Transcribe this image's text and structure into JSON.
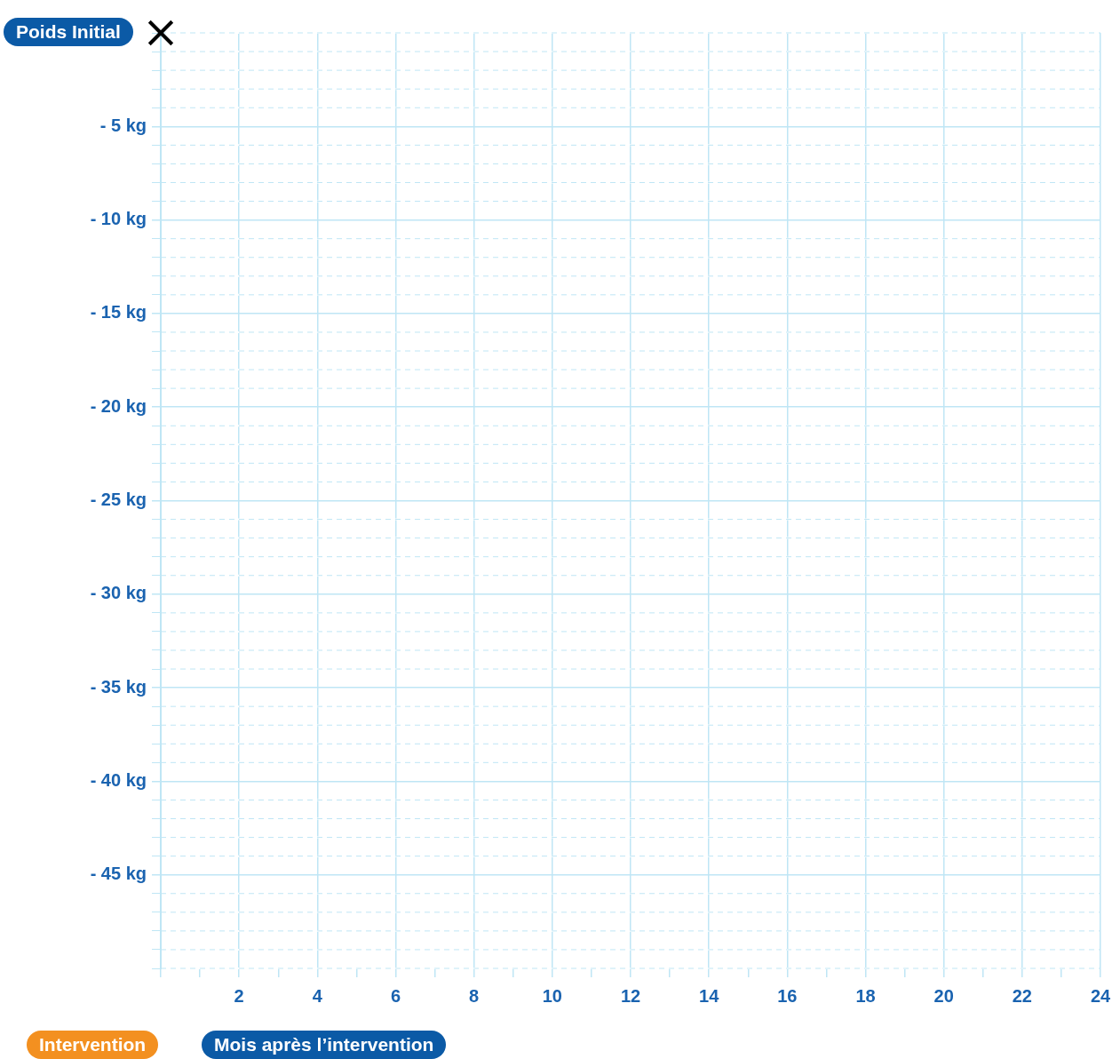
{
  "chart_data": {
    "type": "scatter",
    "ylabel": "Poids Initial",
    "xlabel": "Mois après l’intervention",
    "annotations": [
      "Intervention"
    ],
    "series": [
      {
        "color": "#000000",
        "x": [
          0
        ],
        "values": [
          0
        ]
      }
    ],
    "marker": "cross",
    "grid": true,
    "legend": false,
    "xlim": [
      0,
      24
    ],
    "ylim": [
      -50,
      0
    ],
    "xticks": [
      {
        "value": 0,
        "label": null
      },
      {
        "value": 1,
        "label": null
      },
      2,
      {
        "value": 3,
        "label": null
      },
      4,
      {
        "value": 5,
        "label": null
      },
      6,
      {
        "value": 7,
        "label": null
      },
      8,
      {
        "value": 9,
        "label": null
      },
      10,
      {
        "value": 11,
        "label": null
      },
      12,
      {
        "value": 13,
        "label": null
      },
      14,
      {
        "value": 15,
        "label": null
      },
      16,
      {
        "value": 17,
        "label": null
      },
      18,
      {
        "value": 19,
        "label": null
      },
      20,
      {
        "value": 21,
        "label": null
      },
      22,
      {
        "value": 23,
        "label": null
      },
      24
    ],
    "yticks": [
      {
        "value": 0,
        "label": null
      },
      {
        "value": -1,
        "label": null
      },
      {
        "value": -2,
        "label": null
      },
      {
        "value": -3,
        "label": null
      },
      {
        "value": -4,
        "label": null
      },
      {
        "value": -5,
        "label": "- 5 kg"
      },
      {
        "value": -6,
        "label": null
      },
      {
        "value": -7,
        "label": null
      },
      {
        "value": -8,
        "label": null
      },
      {
        "value": -9,
        "label": null
      },
      {
        "value": -10,
        "label": "- 10 kg"
      },
      {
        "value": -11,
        "label": null
      },
      {
        "value": -12,
        "label": null
      },
      {
        "value": -13,
        "label": null
      },
      {
        "value": -14,
        "label": null
      },
      {
        "value": -15,
        "label": "- 15 kg"
      },
      {
        "value": -16,
        "label": null
      },
      {
        "value": -17,
        "label": null
      },
      {
        "value": -18,
        "label": null
      },
      {
        "value": -19,
        "label": null
      },
      {
        "value": -20,
        "label": "- 20 kg"
      },
      {
        "value": -21,
        "label": null
      },
      {
        "value": -22,
        "label": null
      },
      {
        "value": -23,
        "label": null
      },
      {
        "value": -24,
        "label": null
      },
      {
        "value": -25,
        "label": "- 25 kg"
      },
      {
        "value": -26,
        "label": null
      },
      {
        "value": -27,
        "label": null
      },
      {
        "value": -28,
        "label": null
      },
      {
        "value": -29,
        "label": null
      },
      {
        "value": -30,
        "label": "- 30 kg"
      },
      {
        "value": -31,
        "label": null
      },
      {
        "value": -32,
        "label": null
      },
      {
        "value": -33,
        "label": null
      },
      {
        "value": -34,
        "label": null
      },
      {
        "value": -35,
        "label": "- 35 kg"
      },
      {
        "value": -36,
        "label": null
      },
      {
        "value": -37,
        "label": null
      },
      {
        "value": -38,
        "label": null
      },
      {
        "value": -39,
        "label": null
      },
      {
        "value": -40,
        "label": "- 40 kg"
      },
      {
        "value": -41,
        "label": null
      },
      {
        "value": -42,
        "label": null
      },
      {
        "value": -43,
        "label": null
      },
      {
        "value": -44,
        "label": null
      },
      {
        "value": -45,
        "label": "- 45 kg"
      },
      {
        "value": -46,
        "label": null
      },
      {
        "value": -47,
        "label": null
      },
      {
        "value": -48,
        "label": null
      },
      {
        "value": -49,
        "label": null
      },
      {
        "value": -50,
        "label": null
      }
    ]
  }
}
